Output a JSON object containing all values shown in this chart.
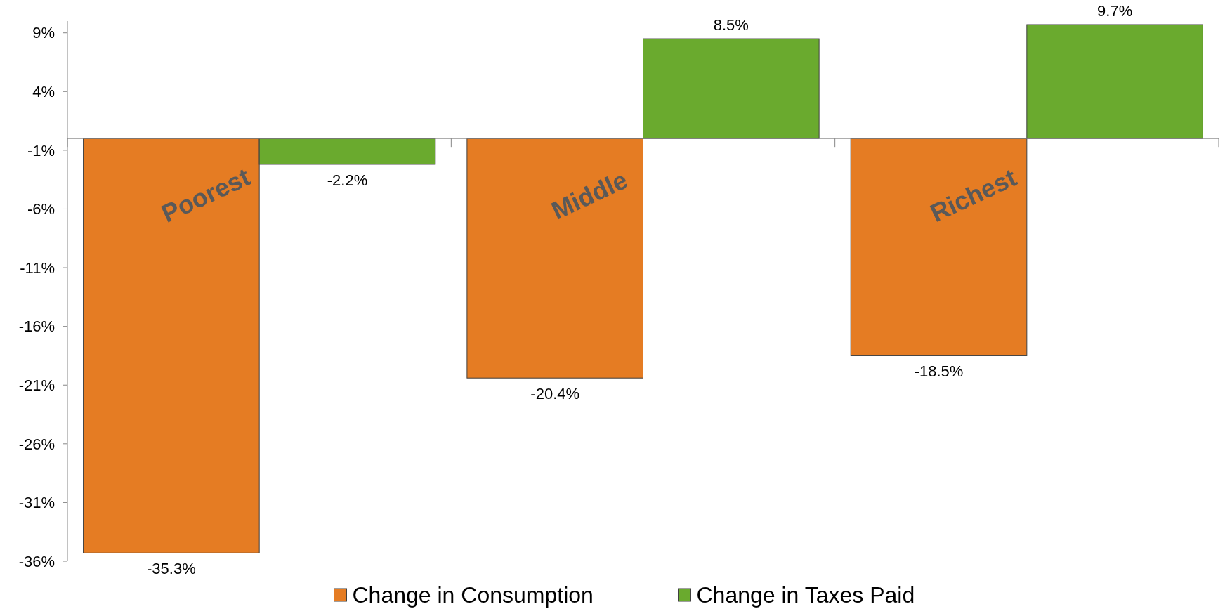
{
  "chart_data": {
    "type": "bar",
    "categories": [
      "Poorest",
      "Middle",
      "Richest"
    ],
    "series": [
      {
        "name": "Change in Consumption",
        "color": "#e57c23",
        "values": [
          -35.3,
          -20.4,
          -18.5
        ],
        "value_labels": [
          "-35.3%",
          "-20.4%",
          "-18.5%"
        ]
      },
      {
        "name": "Change in Taxes Paid",
        "color": "#6aaa2e",
        "values": [
          -2.2,
          8.5,
          9.7
        ],
        "value_labels": [
          "-2.2%",
          "8.5%",
          "9.7%"
        ]
      }
    ],
    "ylim": [
      -36,
      10
    ],
    "yticks": [
      {
        "value": 9,
        "label": "9%"
      },
      {
        "value": 4,
        "label": "4%"
      },
      {
        "value": -1,
        "label": "-1%"
      },
      {
        "value": -6,
        "label": "-6%"
      },
      {
        "value": -11,
        "label": "-11%"
      },
      {
        "value": -16,
        "label": "-16%"
      },
      {
        "value": -21,
        "label": "-21%"
      },
      {
        "value": -26,
        "label": "-26%"
      },
      {
        "value": -31,
        "label": "-31%"
      },
      {
        "value": -36,
        "label": "-36%"
      }
    ],
    "legend": "bottom",
    "grid": false
  }
}
